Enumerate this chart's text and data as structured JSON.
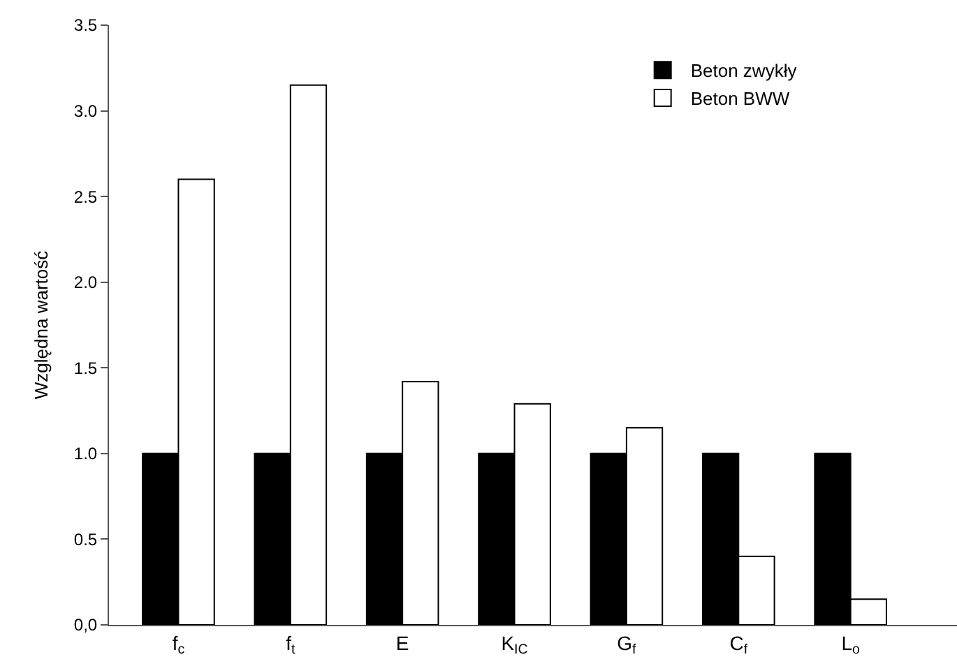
{
  "chart_data": {
    "type": "bar",
    "ylabel": "Względna wartość",
    "categories": [
      "f$_{c}$",
      "f$_{t}$",
      "E",
      "K$_{IC}$",
      "G$_{f}$",
      "C$_{f}$",
      "L$_{o}$"
    ],
    "series": [
      {
        "name": "Beton zwykły",
        "color": "#000000",
        "values": [
          1.0,
          1.0,
          1.0,
          1.0,
          1.0,
          1.0,
          1.0
        ]
      },
      {
        "name": "Beton BWW",
        "color": "#ffffff",
        "values": [
          2.6,
          3.15,
          1.42,
          1.29,
          1.15,
          0.4,
          0.15
        ]
      }
    ],
    "ylim": [
      0,
      3.5
    ],
    "yticks": [
      {
        "value": 0,
        "label": "0,0"
      },
      {
        "value": 0.5,
        "label": "0.5"
      },
      {
        "value": 1,
        "label": "1.0"
      },
      {
        "value": 1.5,
        "label": "1.5"
      },
      {
        "value": 2,
        "label": "2.0"
      },
      {
        "value": 2.5,
        "label": "2.5"
      },
      {
        "value": 3,
        "label": "3.0"
      },
      {
        "value": 3.5,
        "label": "3.5"
      }
    ],
    "legend": "top right"
  }
}
